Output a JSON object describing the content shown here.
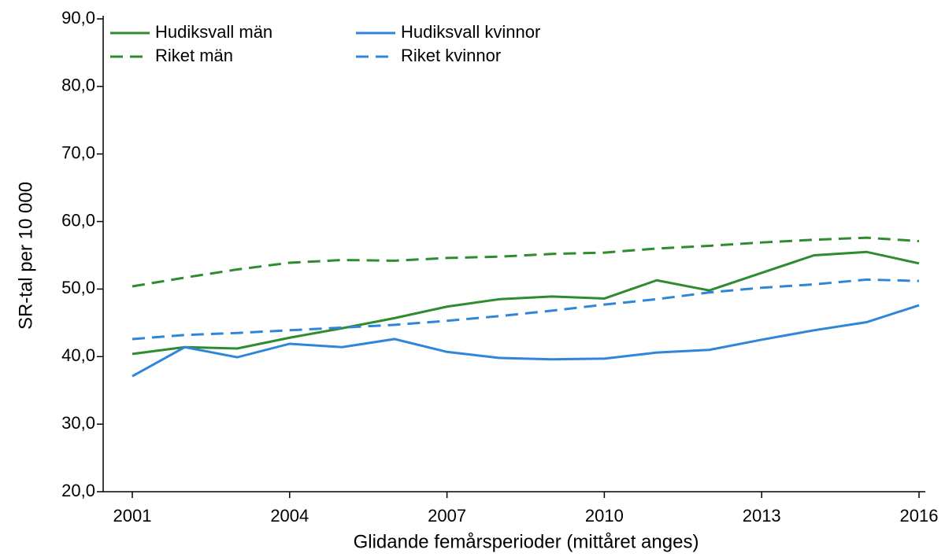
{
  "chart_data": {
    "type": "line",
    "xlabel": "Glidande femårsperioder (mittåret anges)",
    "ylabel": "SR-tal per 10 000",
    "x": [
      2001,
      2002,
      2003,
      2004,
      2005,
      2006,
      2007,
      2008,
      2009,
      2010,
      2011,
      2012,
      2013,
      2014,
      2015,
      2016
    ],
    "series": [
      {
        "name": "Hudiksvall män",
        "color": "#2e8b2e",
        "dashed": false,
        "values": [
          40.4,
          41.4,
          41.2,
          42.8,
          44.2,
          45.7,
          47.4,
          48.5,
          48.9,
          48.6,
          51.3,
          49.8,
          52.4,
          55.0,
          55.5,
          53.8
        ]
      },
      {
        "name": "Riket män",
        "color": "#2e8b2e",
        "dashed": true,
        "values": [
          50.4,
          51.7,
          52.9,
          53.9,
          54.3,
          54.2,
          54.6,
          54.8,
          55.2,
          55.4,
          56.0,
          56.4,
          56.9,
          57.3,
          57.6,
          57.1
        ]
      },
      {
        "name": "Hudiksvall kvinnor",
        "color": "#2f86d8",
        "dashed": false,
        "values": [
          37.1,
          41.4,
          39.9,
          41.9,
          41.4,
          42.6,
          40.7,
          39.8,
          39.6,
          39.7,
          40.6,
          41.0,
          42.5,
          43.9,
          45.1,
          47.6
        ]
      },
      {
        "name": "Riket kvinnor",
        "color": "#2f86d8",
        "dashed": true,
        "values": [
          42.6,
          43.2,
          43.5,
          43.9,
          44.3,
          44.7,
          45.3,
          46.0,
          46.8,
          47.7,
          48.5,
          49.5,
          50.2,
          50.7,
          51.4,
          51.2
        ]
      }
    ],
    "xlim": [
      2001,
      2016
    ],
    "xticks": [
      2001,
      2004,
      2007,
      2010,
      2013,
      2016
    ],
    "ylim": [
      20,
      90
    ],
    "yticks": [
      {
        "value": 20,
        "label": "20,0"
      },
      {
        "value": 30,
        "label": "30,0"
      },
      {
        "value": 40,
        "label": "40,0"
      },
      {
        "value": 50,
        "label": "50,0"
      },
      {
        "value": 60,
        "label": "60,0"
      },
      {
        "value": 70,
        "label": "70,0"
      },
      {
        "value": 80,
        "label": "80,0"
      },
      {
        "value": 90,
        "label": "90,0"
      }
    ],
    "legend": "top-left"
  }
}
